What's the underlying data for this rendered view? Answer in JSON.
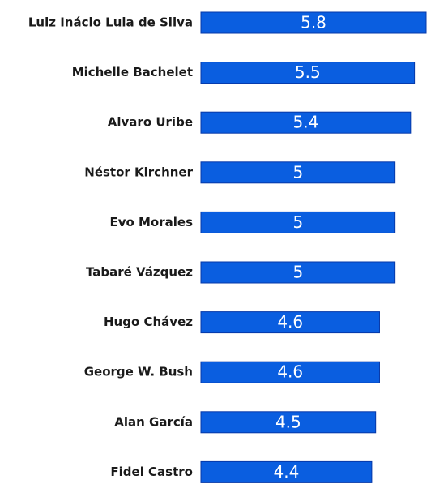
{
  "chart_data": {
    "type": "bar",
    "orientation": "horizontal",
    "title": "",
    "xlabel": "",
    "ylabel": "",
    "grid": false,
    "categories": [
      "Luiz Inácio Lula de Silva",
      "Michelle Bachelet",
      "Alvaro Uribe",
      "Néstor Kirchner",
      "Evo Morales",
      "Tabaré Vázquez",
      "Hugo Chávez",
      "George W. Bush",
      "Alan García",
      "Fidel Castro"
    ],
    "values": [
      5.8,
      5.5,
      5.4,
      5,
      5,
      5,
      4.6,
      4.6,
      4.5,
      4.4
    ],
    "value_labels": [
      "5.8",
      "5.5",
      "5.4",
      "5",
      "5",
      "5",
      "4.6",
      "4.6",
      "4.5",
      "4.4"
    ],
    "xlim": [
      0,
      5.8
    ],
    "bar_color": "#0a5ee0",
    "bar_edge_color": "#0638a8"
  }
}
